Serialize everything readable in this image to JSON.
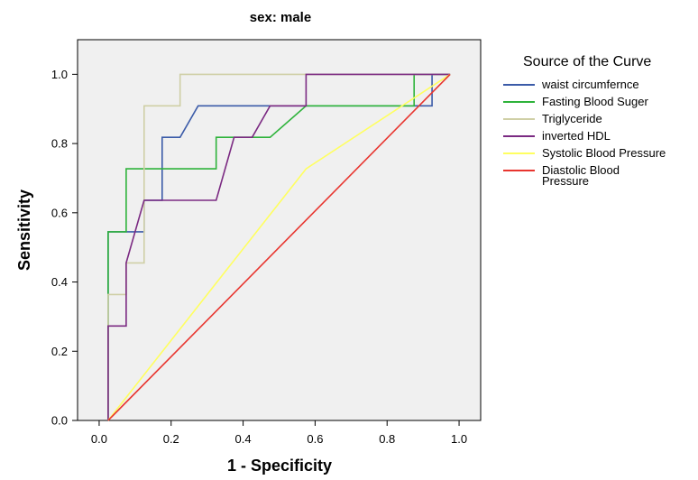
{
  "chart_data": {
    "type": "line",
    "title": "sex: male",
    "xlabel": "1 - Specificity",
    "ylabel": "Sensitivity",
    "xlim": [
      -0.06,
      1.06
    ],
    "ylim": [
      0.0,
      1.1
    ],
    "xticks": [
      "0.0",
      "0.2",
      "0.4",
      "0.6",
      "0.8",
      "1.0"
    ],
    "yticks": [
      "0.0",
      "0.2",
      "0.4",
      "0.6",
      "0.8",
      "1.0"
    ],
    "xtick_values": [
      0.0,
      0.2,
      0.4,
      0.6,
      0.8,
      1.0
    ],
    "ytick_values": [
      0.0,
      0.2,
      0.4,
      0.6,
      0.8,
      1.0
    ],
    "plot_background": "#f0f0f0",
    "grid": false,
    "legend_title": "Source of the Curve",
    "legend_position": "right",
    "series": [
      {
        "name": "waist circumfernce",
        "color": "#3b5ba8",
        "points": [
          [
            0.025,
            0.0
          ],
          [
            0.025,
            0.545
          ],
          [
            0.125,
            0.545
          ],
          [
            0.125,
            0.636
          ],
          [
            0.175,
            0.636
          ],
          [
            0.175,
            0.818
          ],
          [
            0.225,
            0.818
          ],
          [
            0.275,
            0.909
          ],
          [
            0.875,
            0.909
          ],
          [
            0.925,
            0.909
          ],
          [
            0.925,
            1.0
          ],
          [
            0.975,
            1.0
          ]
        ]
      },
      {
        "name": "Fasting Blood Suger",
        "color": "#2eb33b",
        "points": [
          [
            0.025,
            0.0
          ],
          [
            0.025,
            0.545
          ],
          [
            0.075,
            0.545
          ],
          [
            0.075,
            0.727
          ],
          [
            0.325,
            0.727
          ],
          [
            0.325,
            0.818
          ],
          [
            0.425,
            0.818
          ],
          [
            0.475,
            0.818
          ],
          [
            0.575,
            0.909
          ],
          [
            0.875,
            0.909
          ],
          [
            0.875,
            1.0
          ],
          [
            0.975,
            1.0
          ]
        ]
      },
      {
        "name": "Triglyceride",
        "color": "#cfcfa6",
        "points": [
          [
            0.025,
            0.0
          ],
          [
            0.025,
            0.364
          ],
          [
            0.075,
            0.364
          ],
          [
            0.075,
            0.455
          ],
          [
            0.125,
            0.455
          ],
          [
            0.125,
            0.909
          ],
          [
            0.225,
            0.909
          ],
          [
            0.225,
            1.0
          ],
          [
            0.975,
            1.0
          ]
        ]
      },
      {
        "name": "inverted HDL",
        "color": "#7b2a82",
        "points": [
          [
            0.025,
            0.0
          ],
          [
            0.025,
            0.273
          ],
          [
            0.075,
            0.273
          ],
          [
            0.075,
            0.455
          ],
          [
            0.125,
            0.636
          ],
          [
            0.325,
            0.636
          ],
          [
            0.375,
            0.818
          ],
          [
            0.425,
            0.818
          ],
          [
            0.475,
            0.909
          ],
          [
            0.575,
            0.909
          ],
          [
            0.575,
            1.0
          ],
          [
            0.975,
            1.0
          ]
        ]
      },
      {
        "name": "Systolic Blood Pressure",
        "color": "#ffff60",
        "points": [
          [
            0.025,
            0.0
          ],
          [
            0.575,
            0.727
          ],
          [
            0.975,
            1.0
          ]
        ]
      },
      {
        "name": "Diastolic Blood Pressure",
        "legend_lines": [
          "Diastolic Blood",
          "Pressure"
        ],
        "color": "#e8352f",
        "points": [
          [
            0.025,
            0.0
          ],
          [
            0.975,
            1.0
          ]
        ]
      }
    ]
  }
}
